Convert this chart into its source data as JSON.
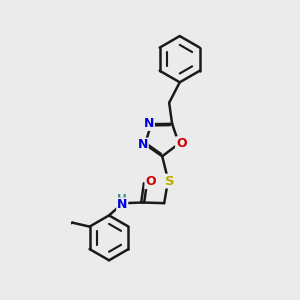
{
  "bg_color": "#ebebeb",
  "line_color": "#1a1a1a",
  "bond_lw": 1.8,
  "atom_colors": {
    "N": "#0000dd",
    "O": "#cc0000",
    "S": "#bbaa00",
    "H": "#3a8888"
  },
  "font_size_ring": 9.0,
  "font_size_nh": 8.5,
  "font_size_s": 9.5
}
